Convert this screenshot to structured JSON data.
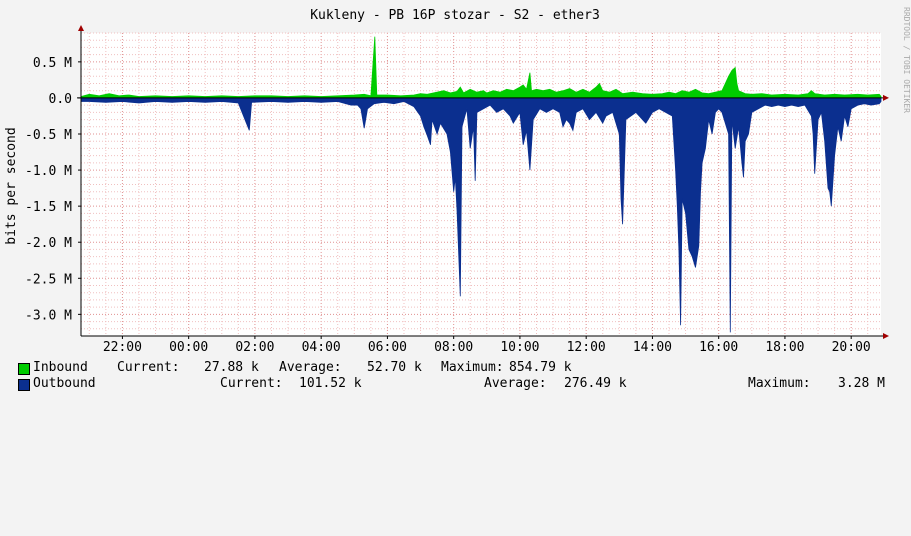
{
  "chart_data": {
    "type": "area",
    "title": "Kukleny - PB 16P stozar - S2 - ether3",
    "ylabel": "bits per second",
    "watermark": "RRDTOOL / TOBI OETIKER",
    "ylim": [
      -3.3,
      0.9
    ],
    "y_unit": "M",
    "y_ticks": [
      {
        "value": 0.5,
        "label": "0.5 M"
      },
      {
        "value": 0.0,
        "label": "0.0"
      },
      {
        "value": -0.5,
        "label": "-0.5 M"
      },
      {
        "value": -1.0,
        "label": "-1.0 M"
      },
      {
        "value": -1.5,
        "label": "-1.5 M"
      },
      {
        "value": -2.0,
        "label": "-2.0 M"
      },
      {
        "value": -2.5,
        "label": "-2.5 M"
      },
      {
        "value": -3.0,
        "label": "-3.0 M"
      }
    ],
    "x_hours_range": [
      20.75,
      44.9
    ],
    "x_ticks": [
      {
        "hour": 22,
        "label": "22:00"
      },
      {
        "hour": 24,
        "label": "00:00"
      },
      {
        "hour": 26,
        "label": "02:00"
      },
      {
        "hour": 28,
        "label": "04:00"
      },
      {
        "hour": 30,
        "label": "06:00"
      },
      {
        "hour": 32,
        "label": "08:00"
      },
      {
        "hour": 34,
        "label": "10:00"
      },
      {
        "hour": 36,
        "label": "12:00"
      },
      {
        "hour": 38,
        "label": "14:00"
      },
      {
        "hour": 40,
        "label": "16:00"
      },
      {
        "hour": 42,
        "label": "18:00"
      },
      {
        "hour": 44,
        "label": "20:00"
      }
    ],
    "grid": true,
    "series": [
      {
        "name": "Inbound",
        "color": "#00cc00",
        "baseline": 0.02,
        "points": [
          [
            21.0,
            0.05
          ],
          [
            21.3,
            0.03
          ],
          [
            21.6,
            0.06
          ],
          [
            21.9,
            0.03
          ],
          [
            22.2,
            0.04
          ],
          [
            22.5,
            0.02
          ],
          [
            23.0,
            0.03
          ],
          [
            23.5,
            0.02
          ],
          [
            24.0,
            0.03
          ],
          [
            24.5,
            0.02
          ],
          [
            25.0,
            0.03
          ],
          [
            25.5,
            0.02
          ],
          [
            26.0,
            0.03
          ],
          [
            26.5,
            0.03
          ],
          [
            27.0,
            0.02
          ],
          [
            27.5,
            0.03
          ],
          [
            28.0,
            0.02
          ],
          [
            28.5,
            0.03
          ],
          [
            29.0,
            0.04
          ],
          [
            29.3,
            0.05
          ],
          [
            29.5,
            0.03
          ],
          [
            29.62,
            0.85
          ],
          [
            29.68,
            0.04
          ],
          [
            30.0,
            0.04
          ],
          [
            30.4,
            0.03
          ],
          [
            30.8,
            0.04
          ],
          [
            31.0,
            0.06
          ],
          [
            31.2,
            0.05
          ],
          [
            31.5,
            0.08
          ],
          [
            31.7,
            0.1
          ],
          [
            31.9,
            0.07
          ],
          [
            32.1,
            0.09
          ],
          [
            32.2,
            0.15
          ],
          [
            32.3,
            0.07
          ],
          [
            32.5,
            0.12
          ],
          [
            32.7,
            0.08
          ],
          [
            32.9,
            0.1
          ],
          [
            33.0,
            0.07
          ],
          [
            33.2,
            0.1
          ],
          [
            33.4,
            0.08
          ],
          [
            33.6,
            0.12
          ],
          [
            33.8,
            0.1
          ],
          [
            34.0,
            0.15
          ],
          [
            34.1,
            0.18
          ],
          [
            34.2,
            0.12
          ],
          [
            34.3,
            0.35
          ],
          [
            34.35,
            0.1
          ],
          [
            34.5,
            0.12
          ],
          [
            34.7,
            0.1
          ],
          [
            34.9,
            0.12
          ],
          [
            35.1,
            0.08
          ],
          [
            35.3,
            0.1
          ],
          [
            35.5,
            0.13
          ],
          [
            35.7,
            0.08
          ],
          [
            35.9,
            0.12
          ],
          [
            36.1,
            0.08
          ],
          [
            36.3,
            0.15
          ],
          [
            36.4,
            0.2
          ],
          [
            36.5,
            0.1
          ],
          [
            36.7,
            0.08
          ],
          [
            36.9,
            0.12
          ],
          [
            37.1,
            0.06
          ],
          [
            37.4,
            0.08
          ],
          [
            37.7,
            0.06
          ],
          [
            38.0,
            0.05
          ],
          [
            38.3,
            0.06
          ],
          [
            38.5,
            0.08
          ],
          [
            38.7,
            0.06
          ],
          [
            38.9,
            0.1
          ],
          [
            39.1,
            0.08
          ],
          [
            39.3,
            0.12
          ],
          [
            39.5,
            0.07
          ],
          [
            39.7,
            0.06
          ],
          [
            39.9,
            0.08
          ],
          [
            40.1,
            0.1
          ],
          [
            40.2,
            0.2
          ],
          [
            40.3,
            0.3
          ],
          [
            40.4,
            0.38
          ],
          [
            40.5,
            0.42
          ],
          [
            40.55,
            0.2
          ],
          [
            40.6,
            0.1
          ],
          [
            40.8,
            0.06
          ],
          [
            41.0,
            0.05
          ],
          [
            41.3,
            0.06
          ],
          [
            41.6,
            0.04
          ],
          [
            42.0,
            0.05
          ],
          [
            42.4,
            0.04
          ],
          [
            42.7,
            0.06
          ],
          [
            42.8,
            0.1
          ],
          [
            42.9,
            0.06
          ],
          [
            43.2,
            0.04
          ],
          [
            43.5,
            0.05
          ],
          [
            43.8,
            0.04
          ],
          [
            44.2,
            0.05
          ],
          [
            44.5,
            0.04
          ],
          [
            44.85,
            0.05
          ]
        ]
      },
      {
        "name": "Outbound",
        "color": "#0b2f8f",
        "baseline": -0.05,
        "points": [
          [
            21.0,
            -0.05
          ],
          [
            21.5,
            -0.06
          ],
          [
            22.0,
            -0.05
          ],
          [
            22.5,
            -0.07
          ],
          [
            23.0,
            -0.05
          ],
          [
            23.5,
            -0.06
          ],
          [
            24.0,
            -0.05
          ],
          [
            24.5,
            -0.06
          ],
          [
            25.0,
            -0.05
          ],
          [
            25.5,
            -0.07
          ],
          [
            25.83,
            -0.45
          ],
          [
            25.9,
            -0.06
          ],
          [
            26.5,
            -0.05
          ],
          [
            27.0,
            -0.06
          ],
          [
            27.5,
            -0.05
          ],
          [
            28.0,
            -0.06
          ],
          [
            28.5,
            -0.05
          ],
          [
            28.9,
            -0.1
          ],
          [
            29.1,
            -0.1
          ],
          [
            29.2,
            -0.15
          ],
          [
            29.3,
            -0.42
          ],
          [
            29.4,
            -0.15
          ],
          [
            29.6,
            -0.08
          ],
          [
            29.9,
            -0.06
          ],
          [
            30.2,
            -0.08
          ],
          [
            30.5,
            -0.05
          ],
          [
            30.8,
            -0.12
          ],
          [
            31.0,
            -0.25
          ],
          [
            31.1,
            -0.4
          ],
          [
            31.2,
            -0.52
          ],
          [
            31.3,
            -0.65
          ],
          [
            31.35,
            -0.3
          ],
          [
            31.5,
            -0.5
          ],
          [
            31.6,
            -0.35
          ],
          [
            31.8,
            -0.5
          ],
          [
            31.9,
            -0.75
          ],
          [
            32.0,
            -1.3
          ],
          [
            32.05,
            -1.1
          ],
          [
            32.1,
            -1.55
          ],
          [
            32.2,
            -2.75
          ],
          [
            32.25,
            -0.4
          ],
          [
            32.4,
            -0.15
          ],
          [
            32.5,
            -0.7
          ],
          [
            32.6,
            -0.4
          ],
          [
            32.65,
            -1.15
          ],
          [
            32.7,
            -0.2
          ],
          [
            32.9,
            -0.15
          ],
          [
            33.1,
            -0.1
          ],
          [
            33.3,
            -0.2
          ],
          [
            33.5,
            -0.15
          ],
          [
            33.7,
            -0.25
          ],
          [
            33.8,
            -0.35
          ],
          [
            34.0,
            -0.2
          ],
          [
            34.1,
            -0.65
          ],
          [
            34.2,
            -0.45
          ],
          [
            34.3,
            -1.0
          ],
          [
            34.4,
            -0.3
          ],
          [
            34.6,
            -0.15
          ],
          [
            34.8,
            -0.2
          ],
          [
            35.0,
            -0.15
          ],
          [
            35.2,
            -0.2
          ],
          [
            35.3,
            -0.4
          ],
          [
            35.4,
            -0.3
          ],
          [
            35.5,
            -0.35
          ],
          [
            35.6,
            -0.45
          ],
          [
            35.7,
            -0.2
          ],
          [
            35.9,
            -0.15
          ],
          [
            36.1,
            -0.3
          ],
          [
            36.3,
            -0.2
          ],
          [
            36.5,
            -0.35
          ],
          [
            36.6,
            -0.25
          ],
          [
            36.8,
            -0.2
          ],
          [
            37.0,
            -0.5
          ],
          [
            37.05,
            -1.4
          ],
          [
            37.1,
            -1.75
          ],
          [
            37.2,
            -0.3
          ],
          [
            37.5,
            -0.2
          ],
          [
            37.7,
            -0.3
          ],
          [
            37.8,
            -0.35
          ],
          [
            38.0,
            -0.2
          ],
          [
            38.2,
            -0.15
          ],
          [
            38.4,
            -0.2
          ],
          [
            38.6,
            -0.25
          ],
          [
            38.7,
            -1.0
          ],
          [
            38.75,
            -1.5
          ],
          [
            38.8,
            -2.1
          ],
          [
            38.85,
            -3.15
          ],
          [
            38.9,
            -1.4
          ],
          [
            39.0,
            -1.6
          ],
          [
            39.1,
            -2.1
          ],
          [
            39.2,
            -2.2
          ],
          [
            39.3,
            -2.35
          ],
          [
            39.4,
            -2.05
          ],
          [
            39.45,
            -1.3
          ],
          [
            39.5,
            -0.9
          ],
          [
            39.6,
            -0.7
          ],
          [
            39.7,
            -0.3
          ],
          [
            39.8,
            -0.5
          ],
          [
            39.9,
            -0.2
          ],
          [
            40.0,
            -0.15
          ],
          [
            40.1,
            -0.2
          ],
          [
            40.3,
            -0.5
          ],
          [
            40.35,
            -3.25
          ],
          [
            40.4,
            -0.3
          ],
          [
            40.5,
            -0.7
          ],
          [
            40.6,
            -0.4
          ],
          [
            40.7,
            -0.9
          ],
          [
            40.75,
            -1.1
          ],
          [
            40.8,
            -0.6
          ],
          [
            40.9,
            -0.5
          ],
          [
            41.0,
            -0.2
          ],
          [
            41.2,
            -0.15
          ],
          [
            41.4,
            -0.1
          ],
          [
            41.6,
            -0.12
          ],
          [
            41.8,
            -0.1
          ],
          [
            42.0,
            -0.12
          ],
          [
            42.2,
            -0.1
          ],
          [
            42.4,
            -0.12
          ],
          [
            42.6,
            -0.1
          ],
          [
            42.8,
            -0.25
          ],
          [
            42.85,
            -0.5
          ],
          [
            42.9,
            -1.05
          ],
          [
            43.0,
            -0.3
          ],
          [
            43.1,
            -0.2
          ],
          [
            43.2,
            -0.6
          ],
          [
            43.3,
            -1.25
          ],
          [
            43.35,
            -1.3
          ],
          [
            43.4,
            -1.5
          ],
          [
            43.5,
            -0.8
          ],
          [
            43.6,
            -0.4
          ],
          [
            43.7,
            -0.6
          ],
          [
            43.8,
            -0.25
          ],
          [
            43.9,
            -0.4
          ],
          [
            44.0,
            -0.15
          ],
          [
            44.2,
            -0.1
          ],
          [
            44.4,
            -0.08
          ],
          [
            44.6,
            -0.1
          ],
          [
            44.85,
            -0.08
          ]
        ]
      }
    ],
    "legend": [
      {
        "name": "Inbound",
        "current_label": "Current:",
        "current": "27.88 k",
        "average_label": "Average:",
        "average": "52.70 k",
        "maximum_label": "Maximum:",
        "maximum": "854.79 k"
      },
      {
        "name": "Outbound",
        "current_label": "Current:",
        "current": "101.52 k",
        "average_label": "Average:",
        "average": "276.49 k",
        "maximum_label": "Maximum:",
        "maximum": "3.28 M"
      }
    ]
  }
}
